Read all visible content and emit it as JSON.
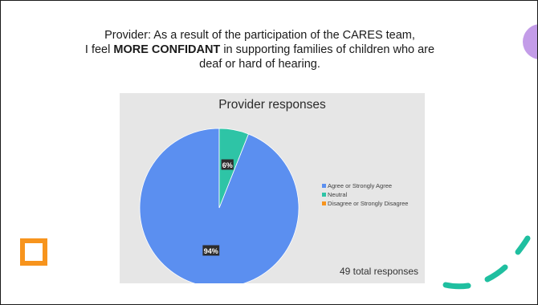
{
  "slide": {
    "heading_line1": "Provider: As a result of the participation of the CARES team,",
    "heading_line2_prefix": "I feel ",
    "heading_line2_bold": "MORE CONFIDANT",
    "heading_line2_suffix": " in supporting families of children who are",
    "heading_line3": "deaf or hard of hearing."
  },
  "chart_data": {
    "type": "pie",
    "title": "Provider responses",
    "categories": [
      "Agree or Strongly Agree",
      "Neutral",
      "Disagree or Strongly Disagree"
    ],
    "values": [
      94,
      6,
      0
    ],
    "value_labels": [
      "94%",
      "6%",
      ""
    ],
    "colors": [
      "#5b8ff0",
      "#2ec4a6",
      "#f7941d"
    ],
    "legend_position": "right",
    "annotation": "49  total responses"
  },
  "decorations": {
    "circle_color": "#c39ce8",
    "square_color": "#f7941d",
    "dash_color": "#1fbfa0"
  }
}
